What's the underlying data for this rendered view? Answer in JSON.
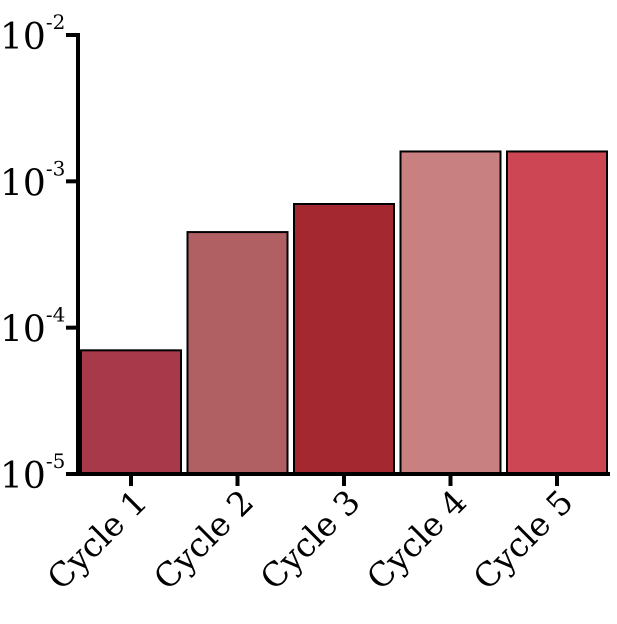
{
  "chart_data": {
    "type": "bar",
    "y_scale": "log",
    "ylim": [
      1e-05,
      0.01
    ],
    "y_ticks": [
      {
        "base": "10",
        "exp": "-5",
        "value": 1e-05
      },
      {
        "base": "10",
        "exp": "-4",
        "value": 0.0001
      },
      {
        "base": "10",
        "exp": "-3",
        "value": 0.001
      },
      {
        "base": "10",
        "exp": "-2",
        "value": 0.01
      }
    ],
    "categories": [
      "Cycle 1",
      "Cycle 2",
      "Cycle 3",
      "Cycle 4",
      "Cycle 5"
    ],
    "values": [
      7e-05,
      0.00045,
      0.0007,
      0.0016,
      0.0016
    ],
    "bar_colors": [
      "#a8394a",
      "#b06063",
      "#a4282f",
      "#c98080",
      "#cc4753"
    ],
    "grid": false,
    "title": "",
    "xlabel": "",
    "ylabel": ""
  }
}
